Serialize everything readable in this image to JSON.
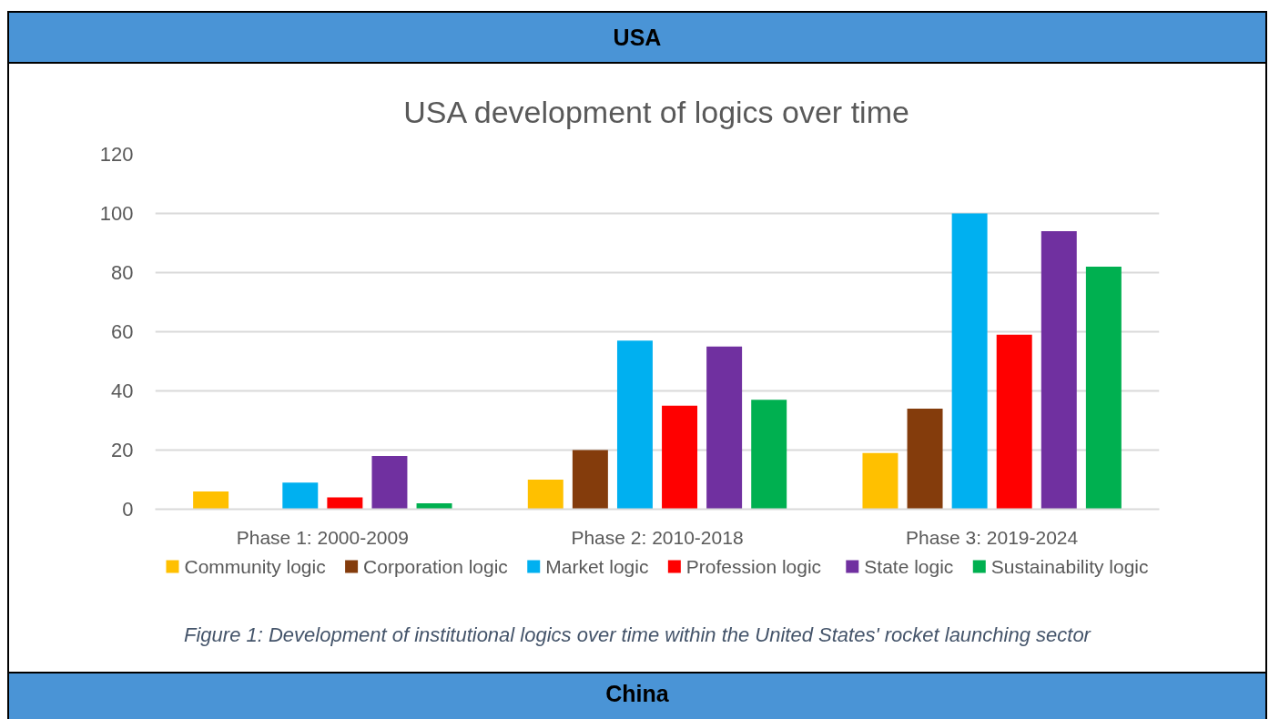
{
  "chart_data": {
    "type": "bar",
    "title": "USA development of logics over time",
    "categories": [
      "Phase 1: 2000-2009",
      "Phase 2: 2010-2018",
      "Phase 3: 2019-2024"
    ],
    "series": [
      {
        "name": "Community logic",
        "color": "#ffc000",
        "values": [
          6,
          10,
          19
        ]
      },
      {
        "name": "Corporation logic",
        "color": "#843c0c",
        "values": [
          0,
          20,
          34
        ]
      },
      {
        "name": "Market logic",
        "color": "#00b0f0",
        "values": [
          9,
          57,
          100
        ]
      },
      {
        "name": "Profession  logic",
        "color": "#ff0000",
        "values": [
          4,
          35,
          59
        ]
      },
      {
        "name": "State logic",
        "color": "#7030a0",
        "values": [
          18,
          55,
          94
        ]
      },
      {
        "name": "Sustainability logic",
        "color": "#00b050",
        "values": [
          2,
          37,
          82
        ]
      }
    ],
    "ylim": [
      0,
      120
    ],
    "yticks": [
      0,
      20,
      40,
      60,
      80,
      100,
      120
    ],
    "grid": "y",
    "legend": "bottom",
    "annotations": [
      "USA",
      "Figure 1: Development of institutional logics over time within the United States' rocket launching sector",
      "China"
    ]
  }
}
